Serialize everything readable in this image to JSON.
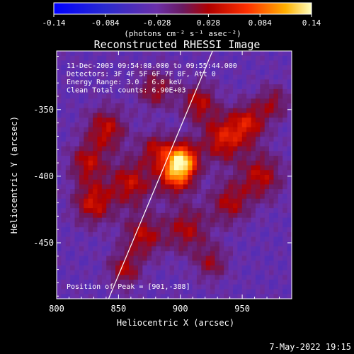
{
  "chart_data": {
    "type": "heatmap",
    "title": "Reconstructed RHESSI Image",
    "xlabel": "Heliocentric X (arcsec)",
    "ylabel": "Heliocentric Y (arcsec)",
    "xlim": [
      800,
      990
    ],
    "ylim": [
      -492,
      -306
    ],
    "x_ticks": [
      "800",
      "850",
      "900",
      "950"
    ],
    "y_ticks": [
      "-350",
      "-400",
      "-450"
    ],
    "colorbar": {
      "ticks": [
        "-0.14",
        "-0.084",
        "-0.028",
        "0.028",
        "0.084",
        "0.14"
      ],
      "range": [
        -0.14,
        0.14
      ],
      "units": "(photons cm⁻² s⁻¹ asec⁻²)"
    },
    "annotations": [
      "11-Dec-2003 09:54:08.000 to 09:55:44.000",
      "Detectors: 3F 4F 5F 6F 7F 8F, Att 0",
      "Energy Range: 3.0 - 6.0 keV",
      "Clean     Total counts: 6.90E+03"
    ],
    "peak_label": "Position of Peak = [901,-388]",
    "peak": [
      901,
      -388
    ],
    "limb_line": [
      [
        842,
        -492
      ],
      [
        926,
        -306
      ]
    ],
    "blobs": [
      {
        "x": 901,
        "y": -388,
        "amp": 0.14,
        "s": 9
      },
      {
        "x": 896,
        "y": -400,
        "amp": 0.09,
        "s": 10
      },
      {
        "x": 935,
        "y": -372,
        "amp": 0.08,
        "s": 12
      },
      {
        "x": 955,
        "y": -360,
        "amp": 0.07,
        "s": 10
      },
      {
        "x": 965,
        "y": -400,
        "amp": 0.065,
        "s": 12
      },
      {
        "x": 940,
        "y": -420,
        "amp": 0.06,
        "s": 11
      },
      {
        "x": 915,
        "y": -345,
        "amp": 0.065,
        "s": 10
      },
      {
        "x": 880,
        "y": -335,
        "amp": 0.055,
        "s": 10
      },
      {
        "x": 840,
        "y": -365,
        "amp": 0.07,
        "s": 11
      },
      {
        "x": 825,
        "y": -390,
        "amp": 0.065,
        "s": 10
      },
      {
        "x": 830,
        "y": -420,
        "amp": 0.075,
        "s": 11
      },
      {
        "x": 860,
        "y": -405,
        "amp": 0.07,
        "s": 12
      },
      {
        "x": 870,
        "y": -445,
        "amp": 0.065,
        "s": 11
      },
      {
        "x": 855,
        "y": -470,
        "amp": 0.06,
        "s": 9
      },
      {
        "x": 905,
        "y": -440,
        "amp": 0.06,
        "s": 12
      },
      {
        "x": 925,
        "y": -465,
        "amp": 0.05,
        "s": 9
      },
      {
        "x": 880,
        "y": -380,
        "amp": 0.06,
        "s": 9
      },
      {
        "x": 975,
        "y": -345,
        "amp": 0.05,
        "s": 9
      }
    ]
  },
  "footer": {
    "timestamp": "7-May-2022 19:15"
  }
}
